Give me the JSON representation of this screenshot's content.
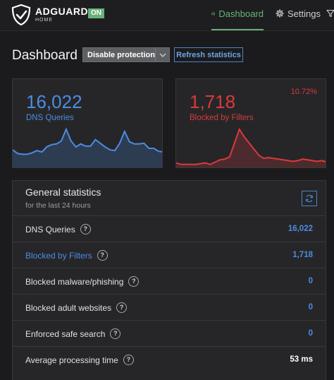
{
  "header": {
    "brand": "ADGUARD",
    "brand_sub": "HOME",
    "status_badge": "ON",
    "nav": [
      {
        "label": "Dashboard",
        "icon": "home-icon",
        "active": true
      },
      {
        "label": "Settings",
        "icon": "gear-icon",
        "active": false
      }
    ]
  },
  "page": {
    "title": "Dashboard",
    "disable_button": "Disable protection",
    "refresh_button": "Refresh statistics"
  },
  "cards": {
    "dns": {
      "value": "16,022",
      "label": "DNS Queries",
      "series": [
        22,
        17,
        16,
        16,
        18,
        21,
        19,
        26,
        29,
        30,
        34,
        50,
        34,
        26,
        30,
        27,
        27,
        36,
        31,
        26,
        22,
        21,
        31,
        47,
        33,
        30,
        30,
        31,
        24,
        24,
        20,
        19
      ]
    },
    "blocked": {
      "value": "1,718",
      "label": "Blocked by Filters",
      "percent": "10.72%",
      "series": [
        4,
        2,
        2,
        2,
        2,
        3,
        4,
        2,
        5,
        8,
        9,
        12,
        30,
        48,
        38,
        30,
        22,
        14,
        10,
        11,
        10,
        9,
        8,
        7,
        6,
        7,
        9,
        8,
        7,
        6,
        7,
        5
      ]
    }
  },
  "general": {
    "title": "General statistics",
    "subtitle": "for the last 24 hours",
    "rows": [
      {
        "label": "DNS Queries",
        "value": "16,022"
      },
      {
        "label": "Blocked by Filters",
        "value": "1,718"
      },
      {
        "label": "Blocked malware/phishing",
        "value": "0"
      },
      {
        "label": "Blocked adult websites",
        "value": "0"
      },
      {
        "label": "Enforced safe search",
        "value": "0"
      },
      {
        "label": "Average processing time",
        "value": "53 ms"
      }
    ]
  },
  "colors": {
    "accent_green": "#67b279",
    "accent_blue": "#4c8ce0",
    "accent_red": "#d93a3a"
  }
}
